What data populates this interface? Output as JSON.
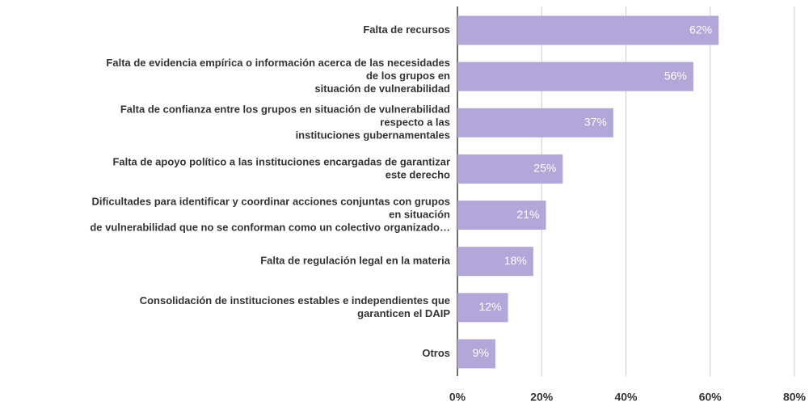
{
  "chart_data": {
    "type": "bar",
    "orientation": "horizontal",
    "categories": [
      [
        "Falta de recursos"
      ],
      [
        "Falta de evidencia empírica o información acerca de las necesidades",
        "de los grupos en",
        "situación de vulnerabilidad"
      ],
      [
        "Falta de confianza entre los grupos en situación de vulnerabilidad",
        "respecto a las",
        "instituciones gubernamentales"
      ],
      [
        "Falta de apoyo político a las instituciones encargadas de garantizar",
        "este derecho"
      ],
      [
        "Dificultades para identificar y coordinar acciones conjuntas con grupos",
        "en situación",
        "de vulnerabilidad que no se conforman como un colectivo organizado…"
      ],
      [
        "Falta de regulación legal en la materia"
      ],
      [
        "Consolidación de instituciones estables e independientes que",
        "garanticen el DAIP"
      ],
      [
        "Otros"
      ]
    ],
    "values": [
      62,
      56,
      37,
      25,
      21,
      18,
      12,
      9
    ],
    "value_labels": [
      "62%",
      "56%",
      "37%",
      "25%",
      "21%",
      "18%",
      "12%",
      "9%"
    ],
    "color": "#b3a6d8",
    "xlim": [
      0,
      80
    ],
    "xticks": [
      {
        "value": 0,
        "label": "0%"
      },
      {
        "value": 20,
        "label": "20%"
      },
      {
        "value": 40,
        "label": "40%"
      },
      {
        "value": 60,
        "label": "60%"
      },
      {
        "value": 80,
        "label": "80%"
      }
    ],
    "grid": true
  }
}
